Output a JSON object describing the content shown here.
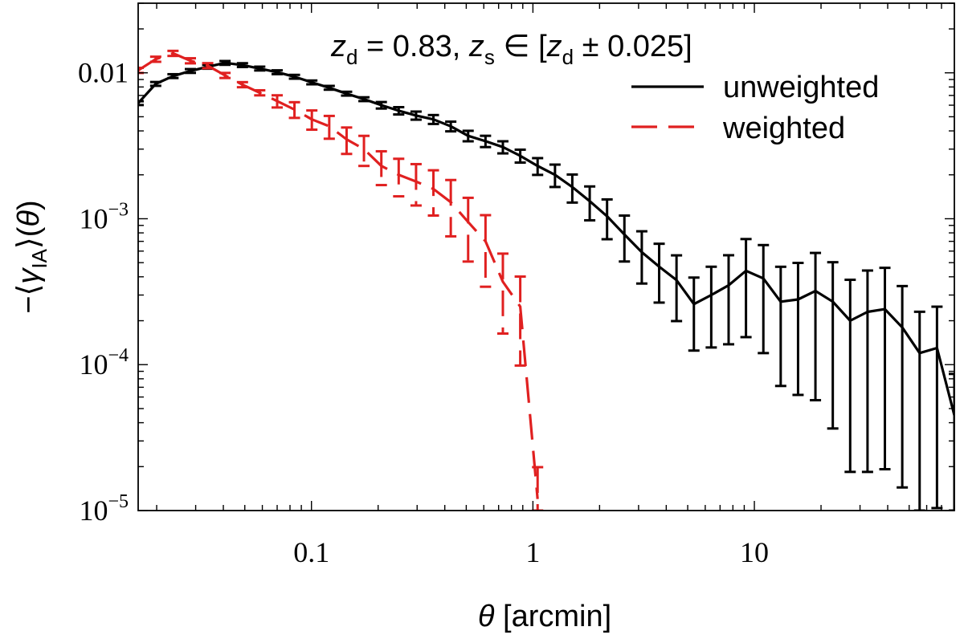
{
  "chart_data": {
    "type": "line",
    "xscale": "log",
    "yscale": "log",
    "xlim": [
      0.0165,
      80
    ],
    "ylim": [
      1e-05,
      0.03
    ],
    "annotation": {
      "z1": "z",
      "z1sub": "d",
      "eq1": " = 0.83, ",
      "z2": "z",
      "z2sub": "s",
      "in": " ∈ [",
      "z3": "z",
      "z3sub": "d",
      "pm": " ± 0.025]"
    },
    "xlabel": {
      "theta": "θ",
      "rest": " [arcmin]"
    },
    "ylabel": {
      "minus": "−⟨",
      "gamma": "γ",
      "sub": "IA",
      "close": "⟩(",
      "theta": "θ",
      "end": ")"
    },
    "x_ticks": [
      {
        "value": 0.1,
        "label": "0.1"
      },
      {
        "value": 1,
        "label": "1"
      },
      {
        "value": 10,
        "label": "10"
      }
    ],
    "y_ticks": [
      {
        "value": 0.01,
        "label": "0.01"
      },
      {
        "value": 0.001,
        "base": "10",
        "exp": "−3"
      },
      {
        "value": 0.0001,
        "base": "10",
        "exp": "−4"
      },
      {
        "value": 1e-05,
        "base": "10",
        "exp": "−5"
      }
    ],
    "legend": {
      "placement": "top-right"
    },
    "series": [
      {
        "name": "unweighted",
        "color": "#000000",
        "dash": "solid",
        "x": [
          0.0165,
          0.0198,
          0.0237,
          0.0284,
          0.034,
          0.0407,
          0.0488,
          0.0584,
          0.07,
          0.0838,
          0.1004,
          0.1203,
          0.1441,
          0.1726,
          0.2068,
          0.2477,
          0.2967,
          0.3554,
          0.4257,
          0.5099,
          0.6108,
          0.7317,
          0.8765,
          1.05,
          1.258,
          1.506,
          1.805,
          2.162,
          2.589,
          3.102,
          3.716,
          4.451,
          5.332,
          6.387,
          7.651,
          9.165,
          10.98,
          13.15,
          15.75,
          18.87,
          22.6,
          27.08,
          32.43,
          38.85,
          46.54,
          55.75,
          66.78,
          80.0
        ],
        "y": [
          0.0062,
          0.0084,
          0.0095,
          0.0103,
          0.011,
          0.0117,
          0.0113,
          0.0107,
          0.0101,
          0.0094,
          0.0086,
          0.0079,
          0.0072,
          0.0066,
          0.006,
          0.0055,
          0.0051,
          0.0048,
          0.0043,
          0.0037,
          0.0034,
          0.0031,
          0.0027,
          0.0023,
          0.002,
          0.00165,
          0.00132,
          0.00104,
          0.00078,
          0.00059,
          0.00047,
          0.00038,
          0.00026,
          0.0003,
          0.00035,
          0.00044,
          0.00039,
          0.00027,
          0.00028,
          0.00032,
          0.00027,
          0.0002,
          0.00023,
          0.00024,
          0.00018,
          0.00012,
          0.00013,
          4.5e-05
        ]
      },
      {
        "name": "weighted",
        "color": "#e02020",
        "dash": "dashed",
        "x": [
          0.0165,
          0.0198,
          0.0237,
          0.0284,
          0.034,
          0.0407,
          0.0488,
          0.0584,
          0.07,
          0.0838,
          0.1004,
          0.1203,
          0.1441,
          0.1726,
          0.2068,
          0.2477,
          0.2967,
          0.3554,
          0.4257,
          0.5099,
          0.6108,
          0.7317,
          0.8765,
          1.05
        ],
        "y": [
          0.0104,
          0.0124,
          0.0136,
          0.0121,
          0.0112,
          0.0096,
          0.0083,
          0.0073,
          0.0064,
          0.0056,
          0.0048,
          0.0043,
          0.0035,
          0.003,
          0.0023,
          0.002,
          0.0018,
          0.0016,
          0.0013,
          0.00095,
          0.0007,
          0.00037,
          0.00025,
          1.2e-05
        ]
      }
    ]
  }
}
